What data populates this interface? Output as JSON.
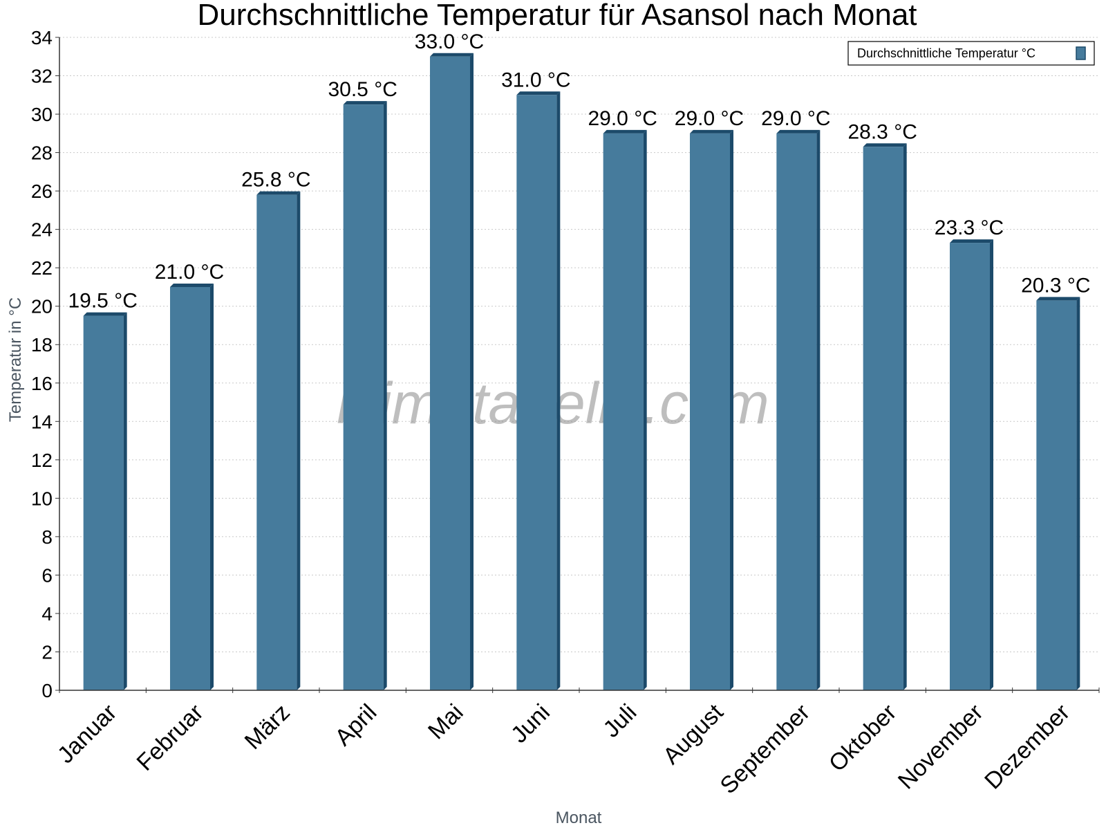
{
  "chart_data": {
    "type": "bar",
    "title": "Durchschnittliche Temperatur für Asansol nach Monat",
    "xlabel": "Monat",
    "ylabel": "Temperatur in °C",
    "categories": [
      "Januar",
      "Februar",
      "März",
      "April",
      "Mai",
      "Juni",
      "Juli",
      "August",
      "September",
      "Oktober",
      "November",
      "Dezember"
    ],
    "series": [
      {
        "name": "Durchschnittliche Temperatur °C",
        "values": [
          19.5,
          21.0,
          25.8,
          30.5,
          33.0,
          31.0,
          29.0,
          29.0,
          29.0,
          28.3,
          23.3,
          20.3
        ],
        "value_labels": [
          "19.5 °C",
          "21.0 °C",
          "25.8 °C",
          "30.5 °C",
          "33.0 °C",
          "31.0 °C",
          "29.0 °C",
          "29.0 °C",
          "29.0 °C",
          "28.3 °C",
          "23.3 °C",
          "20.3 °C"
        ],
        "color": "#467b9c",
        "edge_color": "#1c4a6a"
      }
    ],
    "ylim": [
      0,
      34
    ],
    "yticks": [
      0,
      2,
      4,
      6,
      8,
      10,
      12,
      14,
      16,
      18,
      20,
      22,
      24,
      26,
      28,
      30,
      32,
      34
    ],
    "ytick_labels": [
      "0",
      "2",
      "4",
      "6",
      "8",
      "10",
      "12",
      "14",
      "16",
      "18",
      "20",
      "22",
      "24",
      "26",
      "28",
      "30",
      "32",
      "34"
    ],
    "grid": true,
    "legend_position": "top-right",
    "watermark": "klimatabelle.com"
  }
}
